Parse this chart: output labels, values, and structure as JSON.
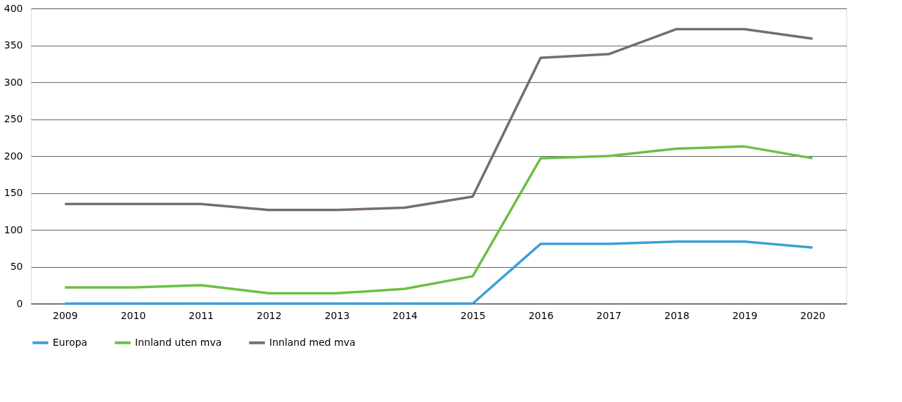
{
  "chart_data": {
    "type": "line",
    "categories": [
      "2009",
      "2010",
      "2011",
      "2012",
      "2013",
      "2014",
      "2015",
      "2016",
      "2017",
      "2018",
      "2019",
      "2020"
    ],
    "series": [
      {
        "name": "Europa",
        "color": "#3d9fd6",
        "values": [
          0,
          0,
          0,
          0,
          0,
          0,
          0,
          81,
          81,
          84,
          84,
          76
        ]
      },
      {
        "name": "Innland uten mva",
        "color": "#6cbf44",
        "values": [
          22,
          22,
          25,
          14,
          14,
          20,
          37,
          197,
          200,
          210,
          213,
          197
        ]
      },
      {
        "name": "Innland med mva",
        "color": "#786c6c",
        "values": [
          135,
          135,
          135,
          127,
          127,
          130,
          145,
          333,
          338,
          372,
          372,
          359
        ]
      }
    ],
    "ylim": [
      0,
      400
    ],
    "yticks": [
      0,
      50,
      100,
      150,
      200,
      250,
      300,
      350,
      400
    ],
    "grid": "y",
    "legend": "bottom",
    "marker": "none",
    "line_style": "solid"
  }
}
